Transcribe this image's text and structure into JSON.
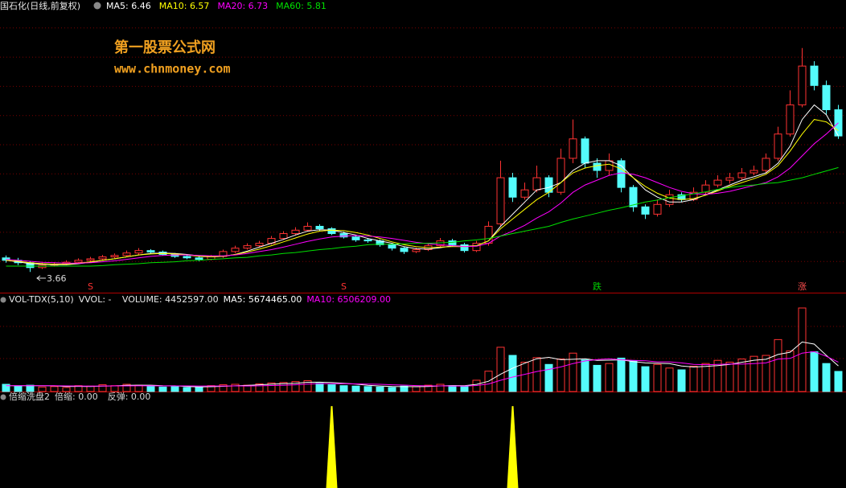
{
  "chart_data": {
    "type": "candlestick",
    "title": "国石化(日线,前复权)",
    "watermark": [
      "第一股票公式网",
      "www.chnmoney.com"
    ],
    "ylim": [
      3.3,
      9.26
    ],
    "up_color": "#ff3232",
    "down_color": "#54fcfc",
    "candles": {
      "open": [
        3.95,
        3.9,
        3.85,
        3.75,
        3.8,
        3.82,
        3.86,
        3.9,
        3.93,
        3.97,
        4.0,
        4.05,
        4.1,
        4.07,
        4.02,
        3.98,
        3.95,
        3.92,
        3.98,
        4.08,
        4.15,
        4.2,
        4.25,
        4.35,
        4.45,
        4.52,
        4.6,
        4.55,
        4.45,
        4.38,
        4.32,
        4.3,
        4.22,
        4.15,
        4.08,
        4.12,
        4.2,
        4.3,
        4.22,
        4.1,
        4.25,
        4.65,
        5.6,
        5.2,
        5.35,
        5.6,
        5.3,
        6.0,
        6.4,
        5.9,
        5.75,
        5.95,
        5.4,
        5.0,
        4.85,
        5.05,
        5.25,
        5.15,
        5.3,
        5.45,
        5.55,
        5.6,
        5.7,
        5.75,
        6.0,
        6.5,
        7.1,
        7.9,
        7.5,
        7.0
      ],
      "high": [
        4.0,
        3.95,
        3.88,
        3.85,
        3.86,
        3.9,
        3.94,
        3.97,
        4.01,
        4.04,
        4.1,
        4.15,
        4.13,
        4.1,
        4.05,
        4.01,
        3.98,
        4.01,
        4.12,
        4.2,
        4.25,
        4.3,
        4.4,
        4.5,
        4.58,
        4.68,
        4.64,
        4.58,
        4.49,
        4.41,
        4.36,
        4.33,
        4.26,
        4.18,
        4.16,
        4.24,
        4.36,
        4.34,
        4.26,
        4.3,
        4.7,
        5.95,
        5.7,
        5.5,
        5.85,
        5.65,
        6.2,
        6.8,
        6.45,
        6.0,
        6.1,
        6.0,
        5.45,
        5.05,
        5.15,
        5.35,
        5.3,
        5.4,
        5.55,
        5.65,
        5.7,
        5.8,
        5.85,
        6.1,
        6.65,
        7.4,
        8.27,
        8.0,
        7.6,
        7.1
      ],
      "low": [
        3.85,
        3.8,
        3.66,
        3.72,
        3.77,
        3.8,
        3.84,
        3.88,
        3.9,
        3.94,
        3.98,
        4.02,
        4.04,
        4.0,
        3.95,
        3.92,
        3.88,
        3.9,
        3.95,
        4.05,
        4.12,
        4.17,
        4.22,
        4.32,
        4.42,
        4.49,
        4.5,
        4.42,
        4.35,
        4.28,
        4.26,
        4.18,
        4.1,
        4.03,
        4.05,
        4.09,
        4.17,
        4.18,
        4.06,
        4.07,
        4.2,
        4.6,
        5.1,
        5.15,
        5.3,
        5.2,
        5.25,
        5.9,
        5.8,
        5.6,
        5.65,
        5.3,
        4.9,
        4.75,
        4.8,
        5.0,
        5.1,
        5.12,
        5.25,
        5.4,
        5.48,
        5.55,
        5.65,
        5.7,
        5.95,
        6.45,
        7.05,
        7.4,
        6.9,
        6.4
      ],
      "close": [
        3.9,
        3.85,
        3.75,
        3.8,
        3.82,
        3.86,
        3.9,
        3.93,
        3.97,
        4.0,
        4.05,
        4.1,
        4.07,
        4.02,
        3.98,
        3.95,
        3.92,
        3.98,
        4.08,
        4.15,
        4.2,
        4.25,
        4.35,
        4.45,
        4.52,
        4.6,
        4.55,
        4.45,
        4.38,
        4.32,
        4.3,
        4.22,
        4.15,
        4.08,
        4.12,
        4.2,
        4.3,
        4.22,
        4.1,
        4.25,
        4.6,
        5.6,
        5.2,
        5.35,
        5.6,
        5.3,
        6.0,
        6.4,
        5.9,
        5.75,
        5.95,
        5.4,
        5.0,
        4.85,
        5.05,
        5.25,
        5.15,
        5.3,
        5.45,
        5.55,
        5.6,
        5.7,
        5.75,
        6.0,
        6.5,
        7.1,
        7.9,
        7.5,
        7.0,
        6.46
      ]
    },
    "series": [
      {
        "name": "MA5",
        "color": "#ffffff",
        "values": [
          3.9,
          3.87,
          3.83,
          3.82,
          3.81,
          3.81,
          3.83,
          3.86,
          3.9,
          3.93,
          3.97,
          4.01,
          4.04,
          4.05,
          4.04,
          4.02,
          3.99,
          3.97,
          3.98,
          4.02,
          4.09,
          4.17,
          4.25,
          4.33,
          4.42,
          4.5,
          4.53,
          4.52,
          4.47,
          4.42,
          4.35,
          4.3,
          4.25,
          4.18,
          4.14,
          4.13,
          4.16,
          4.2,
          4.19,
          4.2,
          4.3,
          4.6,
          4.85,
          5.1,
          5.35,
          5.4,
          5.5,
          5.75,
          5.9,
          5.95,
          5.95,
          5.85,
          5.6,
          5.35,
          5.2,
          5.1,
          5.1,
          5.15,
          5.25,
          5.35,
          5.45,
          5.55,
          5.62,
          5.7,
          5.9,
          6.25,
          6.8,
          7.1,
          6.9,
          6.46
        ]
      },
      {
        "name": "MA10",
        "color": "#ffff00",
        "values": [
          3.9,
          3.88,
          3.85,
          3.83,
          3.82,
          3.82,
          3.84,
          3.87,
          3.9,
          3.93,
          3.97,
          4.01,
          4.03,
          4.04,
          4.03,
          4.01,
          3.98,
          3.97,
          3.98,
          4.02,
          4.07,
          4.13,
          4.2,
          4.28,
          4.36,
          4.44,
          4.5,
          4.52,
          4.51,
          4.47,
          4.42,
          4.35,
          4.28,
          4.22,
          4.18,
          4.16,
          4.17,
          4.18,
          4.18,
          4.2,
          4.3,
          4.55,
          4.75,
          4.95,
          5.15,
          5.3,
          5.5,
          5.7,
          5.8,
          5.85,
          5.88,
          5.78,
          5.6,
          5.42,
          5.28,
          5.18,
          5.15,
          5.17,
          5.24,
          5.33,
          5.42,
          5.5,
          5.58,
          5.67,
          5.85,
          6.15,
          6.5,
          6.8,
          6.75,
          6.57
        ]
      },
      {
        "name": "MA20",
        "color": "#ff00ff",
        "values": [
          3.92,
          3.9,
          3.88,
          3.86,
          3.85,
          3.84,
          3.84,
          3.85,
          3.87,
          3.89,
          3.92,
          3.95,
          3.98,
          4.0,
          4.01,
          4.01,
          4.0,
          3.99,
          3.99,
          4.01,
          4.04,
          4.08,
          4.12,
          4.17,
          4.23,
          4.29,
          4.34,
          4.38,
          4.4,
          4.41,
          4.4,
          4.38,
          4.35,
          4.31,
          4.27,
          4.24,
          4.22,
          4.2,
          4.18,
          4.19,
          4.25,
          4.4,
          4.5,
          4.62,
          4.77,
          4.9,
          5.08,
          5.3,
          5.45,
          5.55,
          5.65,
          5.7,
          5.67,
          5.6,
          5.5,
          5.4,
          5.32,
          5.27,
          5.26,
          5.28,
          5.32,
          5.38,
          5.44,
          5.5,
          5.62,
          5.8,
          6.05,
          6.3,
          6.5,
          6.73
        ]
      },
      {
        "name": "MA60",
        "color": "#00e000",
        "values": [
          3.78,
          3.78,
          3.78,
          3.78,
          3.78,
          3.78,
          3.78,
          3.78,
          3.79,
          3.81,
          3.82,
          3.83,
          3.85,
          3.86,
          3.87,
          3.89,
          3.9,
          3.92,
          3.93,
          3.95,
          3.96,
          3.99,
          4.01,
          4.04,
          4.06,
          4.09,
          4.12,
          4.14,
          4.17,
          4.19,
          4.22,
          4.23,
          4.23,
          4.24,
          4.25,
          4.25,
          4.26,
          4.27,
          4.3,
          4.32,
          4.35,
          4.4,
          4.45,
          4.5,
          4.55,
          4.6,
          4.68,
          4.75,
          4.81,
          4.87,
          4.93,
          4.98,
          5.04,
          5.1,
          5.14,
          5.19,
          5.23,
          5.27,
          5.31,
          5.36,
          5.4,
          5.43,
          5.45,
          5.48,
          5.5,
          5.55,
          5.6,
          5.67,
          5.74,
          5.81
        ]
      }
    ],
    "signals": [
      null,
      null,
      null,
      null,
      null,
      null,
      null,
      {
        "text": "S",
        "color": "#ff3232"
      },
      null,
      null,
      null,
      null,
      null,
      null,
      null,
      null,
      null,
      null,
      null,
      null,
      null,
      null,
      null,
      null,
      null,
      null,
      null,
      null,
      {
        "text": "S",
        "color": "#ff3232"
      },
      null,
      null,
      null,
      null,
      null,
      null,
      null,
      null,
      null,
      null,
      null,
      null,
      null,
      null,
      null,
      null,
      null,
      null,
      null,
      null,
      {
        "text": "跌",
        "color": "#00d000"
      },
      null,
      null,
      null,
      null,
      null,
      null,
      null,
      null,
      null,
      null,
      null,
      null,
      null,
      null,
      null,
      null,
      {
        "text": "涨",
        "color": "#ff5050"
      },
      null,
      null,
      null
    ],
    "volume": {
      "title": "VOL-TDX(5,10)",
      "vvol_text": "VVOL: -",
      "name": "VOLUME",
      "current_label": "4452597.00",
      "ylim": [
        0,
        21000000
      ],
      "values": [
        1600000,
        1200000,
        1400000,
        1000000,
        1100000,
        900000,
        1300000,
        1200000,
        1500000,
        1300000,
        1600000,
        1400000,
        1200000,
        1000000,
        1100000,
        900000,
        1000000,
        1300000,
        1500000,
        1600000,
        1400000,
        1700000,
        1900000,
        2000000,
        2200000,
        2400000,
        1800000,
        1500000,
        1300000,
        1200000,
        1100000,
        1000000,
        900000,
        1200000,
        1100000,
        1400000,
        1600000,
        1300000,
        1100000,
        2500000,
        4500000,
        9800000,
        8000000,
        6500000,
        7500000,
        6000000,
        7200000,
        8500000,
        7000000,
        5800000,
        6200000,
        7400000,
        6800000,
        5500000,
        6000000,
        5200000,
        4800000,
        5600000,
        6200000,
        6900000,
        6500000,
        7200000,
        7800000,
        8000000,
        11500000,
        9000000,
        18500000,
        8800000,
        6200000,
        4452597
      ],
      "series": [
        {
          "name": "MA5",
          "color": "#ffffff",
          "current_label": "5674465.00",
          "values": [
            1300000,
            1300000,
            1300000,
            1300000,
            1260000,
            1120000,
            1140000,
            1100000,
            1200000,
            1240000,
            1380000,
            1400000,
            1400000,
            1300000,
            1260000,
            1120000,
            1040000,
            1060000,
            1160000,
            1260000,
            1360000,
            1500000,
            1620000,
            1720000,
            1840000,
            2040000,
            2060000,
            1980000,
            1840000,
            1640000,
            1380000,
            1220000,
            1100000,
            1080000,
            1060000,
            1120000,
            1240000,
            1320000,
            1300000,
            1580000,
            2280000,
            3840000,
            5180000,
            6260000,
            7260000,
            7560000,
            7040000,
            7140000,
            7240000,
            6900000,
            6940000,
            7020000,
            6640000,
            6340000,
            6240000,
            6180000,
            5660000,
            5420000,
            5560000,
            5740000,
            6000000,
            6480000,
            6920000,
            7140000,
            8200000,
            8700000,
            10960000,
            10500000,
            8000000,
            5674465
          ]
        },
        {
          "name": "MA10",
          "color": "#ff00ff",
          "current_label": "6506209.00",
          "values": [
            1300000,
            1300000,
            1300000,
            1300000,
            1300000,
            1250000,
            1220000,
            1200000,
            1230000,
            1250000,
            1250000,
            1270000,
            1270000,
            1250000,
            1250000,
            1250000,
            1220000,
            1220000,
            1230000,
            1250000,
            1230000,
            1260000,
            1330000,
            1390000,
            1500000,
            1650000,
            1730000,
            1750000,
            1730000,
            1690000,
            1660000,
            1600000,
            1500000,
            1420000,
            1310000,
            1250000,
            1240000,
            1220000,
            1200000,
            1330000,
            1670000,
            2500000,
            3200000,
            3800000,
            4440000,
            4900000,
            5440000,
            6200000,
            6760000,
            7080000,
            7250000,
            7030000,
            6900000,
            6790000,
            6570000,
            6560000,
            6340000,
            6020000,
            5950000,
            5990000,
            6090000,
            6070000,
            6170000,
            6340000,
            7190000,
            7340000,
            8500000,
            8820000,
            7800000,
            6506209
          ]
        }
      ]
    },
    "indicator": {
      "title": "倍缩洗盘2",
      "color": "#ffff00",
      "ylim": [
        0,
        1.1
      ],
      "series": [
        {
          "name": "倍缩",
          "current_label": "0.00",
          "values": [
            0,
            0,
            0,
            0,
            0,
            0,
            0,
            0,
            0,
            0,
            0,
            0,
            0,
            0,
            0,
            0,
            0,
            0,
            0,
            0,
            0,
            0,
            0,
            0,
            0,
            0,
            0,
            1,
            0,
            0,
            0,
            0,
            0,
            0,
            0,
            0,
            0,
            0,
            0,
            0,
            0,
            0,
            1,
            0,
            0,
            0,
            0,
            0,
            0,
            0,
            0,
            0,
            0,
            0,
            0,
            0,
            0,
            0,
            0,
            0,
            0,
            0,
            0,
            0,
            0,
            0,
            0,
            0,
            0,
            0
          ]
        },
        {
          "name": "反弹",
          "current_label": "0.00"
        }
      ]
    }
  }
}
